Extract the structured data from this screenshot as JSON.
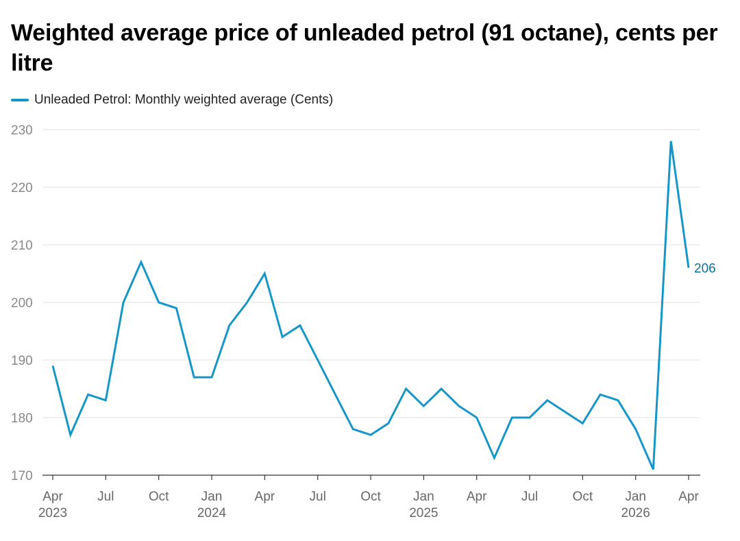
{
  "colors": {
    "series": "#1596c8",
    "last_label": "#0e6f9b",
    "grid": "#e0e0e0",
    "axis": "#333333"
  },
  "chart_data": {
    "type": "line",
    "title": "Weighted average price of unleaded petrol (91 octane), cents per litre",
    "xlabel": "",
    "ylabel": "",
    "ylim": [
      170,
      230
    ],
    "yticks": [
      230,
      220,
      210,
      200,
      190,
      180,
      170
    ],
    "xlim": [
      "2023-04",
      "2026-04"
    ],
    "x_tick_labels": [
      {
        "month": "2023-04",
        "label": "Apr",
        "year": "2023"
      },
      {
        "month": "2023-07",
        "label": "Jul",
        "year": ""
      },
      {
        "month": "2023-10",
        "label": "Oct",
        "year": ""
      },
      {
        "month": "2024-01",
        "label": "Jan",
        "year": "2024"
      },
      {
        "month": "2024-04",
        "label": "Apr",
        "year": ""
      },
      {
        "month": "2024-07",
        "label": "Jul",
        "year": ""
      },
      {
        "month": "2024-10",
        "label": "Oct",
        "year": ""
      },
      {
        "month": "2025-01",
        "label": "Jan",
        "year": "2025"
      },
      {
        "month": "2025-04",
        "label": "Apr",
        "year": ""
      },
      {
        "month": "2025-07",
        "label": "Jul",
        "year": ""
      },
      {
        "month": "2025-10",
        "label": "Oct",
        "year": ""
      },
      {
        "month": "2026-01",
        "label": "Jan",
        "year": "2026"
      },
      {
        "month": "2026-04",
        "label": "Apr",
        "year": ""
      }
    ],
    "grid": true,
    "legend_position": "top-left",
    "series": [
      {
        "name": "Unleaded Petrol: Monthly weighted average (Cents)",
        "last_value_label": "206",
        "x": [
          "2023-04",
          "2023-05",
          "2023-06",
          "2023-07",
          "2023-08",
          "2023-09",
          "2023-10",
          "2023-11",
          "2023-12",
          "2024-01",
          "2024-02",
          "2024-03",
          "2024-04",
          "2024-05",
          "2024-06",
          "2024-07",
          "2024-08",
          "2024-09",
          "2024-10",
          "2024-11",
          "2024-12",
          "2025-01",
          "2025-02",
          "2025-03",
          "2025-04",
          "2025-05",
          "2025-06",
          "2025-07",
          "2025-08",
          "2025-09",
          "2025-10",
          "2025-11",
          "2025-12",
          "2026-01",
          "2026-02",
          "2026-03",
          "2026-04"
        ],
        "values": [
          189,
          177,
          184,
          183,
          200,
          207,
          200,
          199,
          187,
          187,
          196,
          200,
          205,
          194,
          196,
          190,
          184,
          178,
          177,
          179,
          185,
          182,
          185,
          182,
          180,
          173,
          180,
          180,
          183,
          181,
          179,
          184,
          183,
          178,
          171,
          228,
          206
        ]
      }
    ]
  }
}
